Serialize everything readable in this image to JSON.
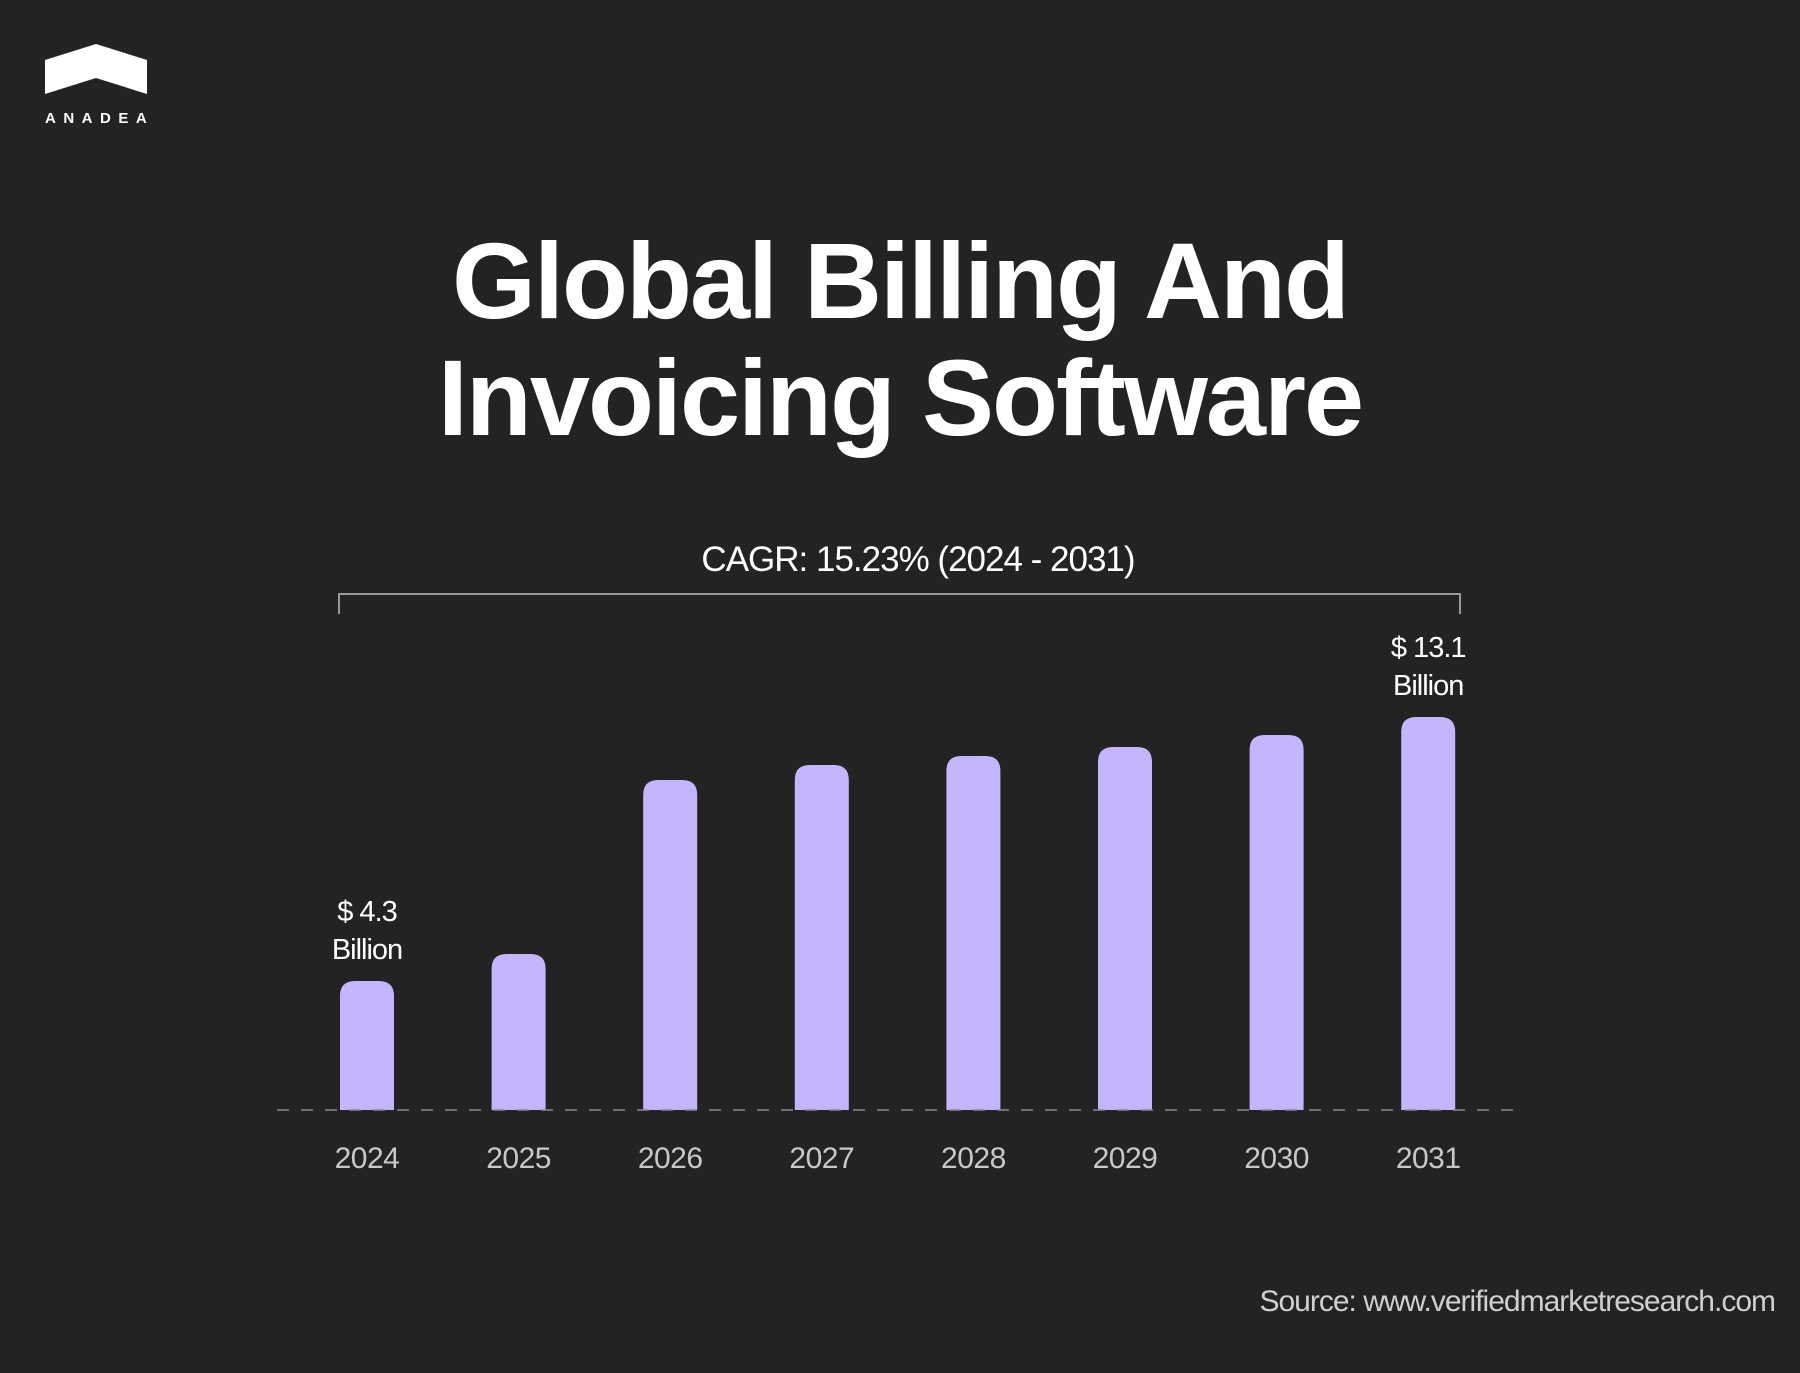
{
  "brand": {
    "name": "ANADEA",
    "logo_icon": "house-roof-icon"
  },
  "title_lines": [
    "Global Billing And",
    "Invoicing Software"
  ],
  "cagr_label": "CAGR: 15.23% (2024 - 2031)",
  "source": "Source: www.verifiedmarketresearch.com",
  "colors": {
    "background": "#232323",
    "bar": "#c5b5fd",
    "text": "#ffffff",
    "axis_label": "#c8c8c8"
  },
  "chart_data": {
    "type": "bar",
    "title": "Global Billing And Invoicing Software",
    "categories": [
      "2024",
      "2025",
      "2026",
      "2027",
      "2028",
      "2029",
      "2030",
      "2031"
    ],
    "values": [
      4.3,
      5.2,
      11.0,
      11.5,
      11.8,
      12.1,
      12.5,
      13.1
    ],
    "unit": "USD Billion",
    "data_labels": [
      {
        "category": "2024",
        "lines": [
          "$ 4.3",
          "Billion"
        ]
      },
      {
        "category": "2031",
        "lines": [
          "$ 13.1",
          "Billion"
        ]
      }
    ],
    "ylim": [
      0,
      13.1
    ],
    "grid": false,
    "baseline": "dashed"
  }
}
